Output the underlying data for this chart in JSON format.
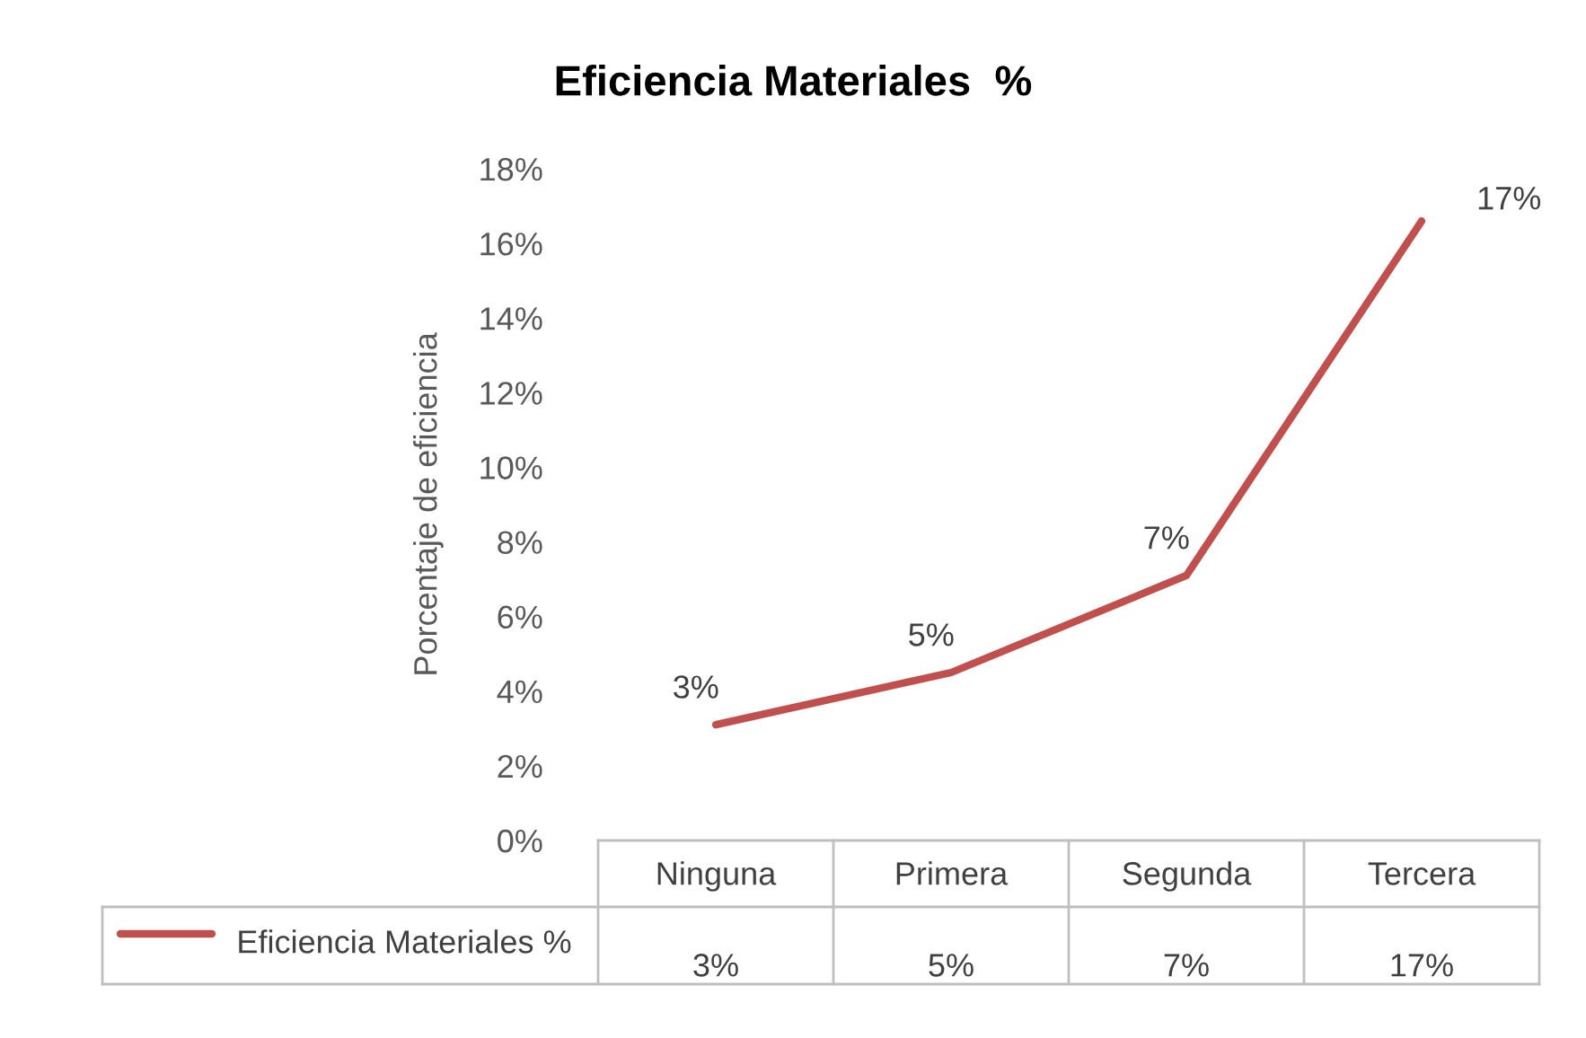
{
  "chart_data": {
    "type": "line",
    "title": "Eficiencia Materiales  %",
    "ylabel": "Porcentaje de eficiencia",
    "categories": [
      "Ninguna",
      "Primera",
      "Segunda",
      "Tercera"
    ],
    "series": [
      {
        "name": "Eficiencia Materiales %",
        "color": "#c0504d",
        "values": [
          3.1,
          4.5,
          7.1,
          16.6
        ],
        "value_labels": [
          "3%",
          "5%",
          "7%",
          "17%"
        ]
      }
    ],
    "ylim": [
      0,
      18
    ],
    "yticks": [
      {
        "value": 0,
        "label": "0%"
      },
      {
        "value": 2,
        "label": "2%"
      },
      {
        "value": 4,
        "label": "4%"
      },
      {
        "value": 6,
        "label": "6%"
      },
      {
        "value": 8,
        "label": "8%"
      },
      {
        "value": 10,
        "label": "10%"
      },
      {
        "value": 12,
        "label": "12%"
      },
      {
        "value": 14,
        "label": "14%"
      },
      {
        "value": 16,
        "label": "16%"
      },
      {
        "value": 18,
        "label": "18%"
      }
    ],
    "grid": false,
    "legend": "bottom",
    "marker": "none",
    "line_style": "solid"
  }
}
